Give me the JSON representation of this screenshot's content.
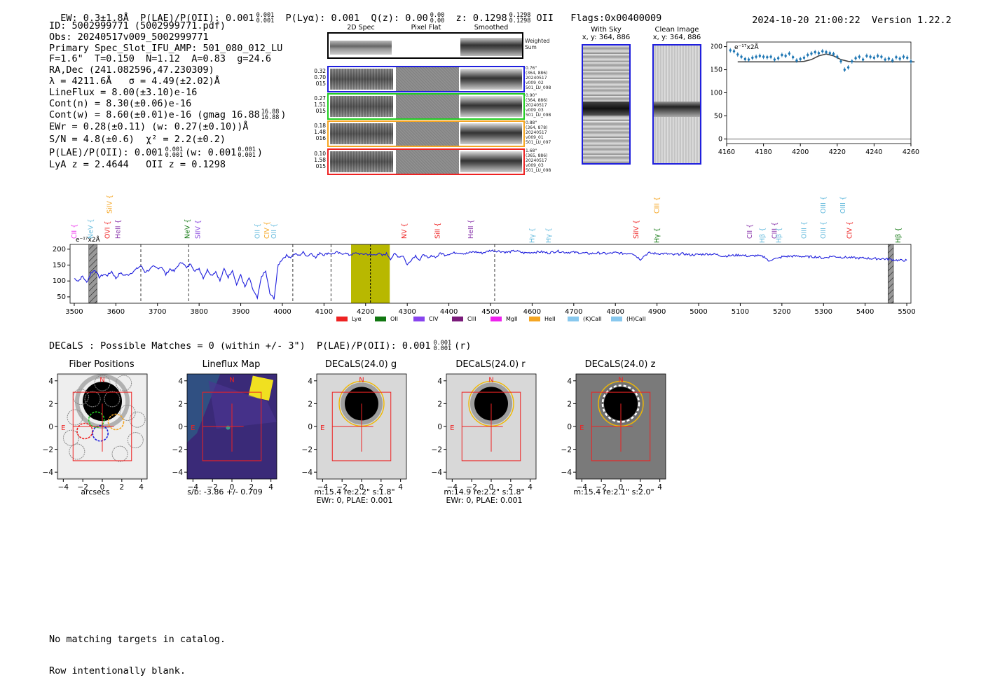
{
  "header": {
    "ew": "EW: 0.3±1.8Å",
    "plae_label": "P(LAE)/P(OII): 0.001",
    "plae_hi": "0.001",
    "plae_lo": "0.001",
    "plya": "P(Lyα): 0.001",
    "qz_label": "Q(z): 0.00",
    "qz_hi": "0.00",
    "qz_lo": "0.00",
    "z_label": "z: 0.1298",
    "z_hi": "0.1298",
    "z_lo": "0.1298",
    "z_line": "OII",
    "flags": "Flags:0x00400009",
    "datetime": "2024-10-20 21:00:22",
    "version": "Version 1.22.2"
  },
  "info": {
    "id": "ID: 5002999771 (5002999771.pdf)",
    "obs": "Obs: 20240517v009_5002999771",
    "primary": "Primary Spec_Slot_IFU_AMP: 501_080_012_LU",
    "fiber": "F=1.6\"  T=0.150  N=1.12  A=0.83  g=24.6",
    "radec": "RA,Dec (241.082596,47.230309)",
    "lambda": "λ = 4211.6Å   σ = 4.49(±2.02)Å",
    "lineflux": "LineFlux = 8.00(±3.10)e-16",
    "contn": "Cont(n) = 8.30(±0.06)e-16",
    "contw": "Cont(w) = 8.60(±0.01)e-16 (gmag 16.88",
    "gmag_hi": "16.88",
    "gmag_lo": "16.88",
    "ewr": "EWr = 0.28(±0.11) (w: 0.27(±0.10))Å",
    "sn": "S/N = 4.8(±0.6)  χ² = 2.2(±0.2)",
    "plae": "P(LAE)/P(OII): 0.001",
    "plae_hi": "0.001",
    "plae_lo": "0.001",
    "plae_w": "(w: 0.001",
    "plae_w_hi": "0.001",
    "plae_w_lo": "0.001",
    "lya_z": "LyA z = 2.4644   OII z = 0.1298"
  },
  "cutouts": {
    "col_titles": [
      "2D Spec",
      "Pixel Flat",
      "Smoothed"
    ],
    "weighted_label": "Weighted\nSum",
    "rows": [
      {
        "color": "#1f1fdd",
        "left": [
          "0.32",
          "0.70",
          "015"
        ],
        "right": [
          "0.76\"",
          "(364, 886)",
          "20240517",
          "v009_02",
          "501_LU_098"
        ]
      },
      {
        "color": "#22cc22",
        "left": [
          "0.27",
          "1.51",
          "015"
        ],
        "right": [
          "0.90\"",
          "(364, 886)",
          "20240517",
          "v009_03",
          "501_LU_098"
        ]
      },
      {
        "color": "#f5a623",
        "left": [
          "0.18",
          "1.48",
          "016"
        ],
        "right": [
          "0.88\"",
          "(364, 878)",
          "20240517",
          "v009_01",
          "501_LU_097"
        ]
      },
      {
        "color": "#ee2222",
        "left": [
          "0.10",
          "1.58",
          "015"
        ],
        "right": [
          "1.68\"",
          "(365, 886)",
          "20240517",
          "v009_03",
          "501_LU_098"
        ]
      }
    ],
    "with_sky_title": "With Sky",
    "with_sky_xy": "x, y: 364, 886",
    "clean_title": "Clean Image",
    "clean_xy": "x, y: 364, 886"
  },
  "colors": {
    "spectrum": "#1f1fdd",
    "zoom_points": "#1f77b4",
    "highlight": "#b8b800"
  },
  "zoom_chart": {
    "type": "scatter",
    "unit_label": "e⁻¹⁷x2Å",
    "xlim": [
      4160,
      4260
    ],
    "ylim": [
      -10,
      210
    ],
    "xticks": [
      4160,
      4180,
      4200,
      4220,
      4240,
      4260
    ],
    "yticks": [
      0,
      50,
      100,
      150,
      200
    ],
    "points_x": [
      4162,
      4164,
      4166,
      4168,
      4170,
      4172,
      4174,
      4176,
      4178,
      4180,
      4182,
      4184,
      4186,
      4188,
      4190,
      4192,
      4194,
      4196,
      4198,
      4200,
      4202,
      4204,
      4206,
      4208,
      4210,
      4212,
      4214,
      4216,
      4218,
      4220,
      4222,
      4224,
      4226,
      4228,
      4230,
      4232,
      4234,
      4236,
      4238,
      4240,
      4242,
      4244,
      4246,
      4248,
      4250,
      4252,
      4254,
      4256,
      4258,
      4260
    ],
    "points_y": [
      192,
      190,
      183,
      178,
      173,
      172,
      176,
      178,
      180,
      178,
      177,
      178,
      172,
      175,
      182,
      180,
      185,
      177,
      170,
      173,
      176,
      182,
      185,
      188,
      186,
      190,
      188,
      186,
      184,
      178,
      168,
      150,
      155,
      168,
      175,
      178,
      172,
      180,
      178,
      176,
      180,
      178,
      172,
      174,
      170,
      177,
      174,
      178,
      176,
      168
    ],
    "fit_x": [
      4166,
      4190,
      4195,
      4198,
      4202,
      4206,
      4210,
      4214,
      4218,
      4222,
      4226,
      4230,
      4262
    ],
    "fit_y": [
      167,
      167,
      167,
      167,
      168,
      172,
      180,
      184,
      180,
      172,
      168,
      167,
      167
    ]
  },
  "spectrum": {
    "type": "line",
    "unit_label": "e⁻¹⁷x2Å",
    "xlim": [
      3490,
      5510
    ],
    "ylim": [
      30,
      215
    ],
    "xticks": [
      3500,
      3600,
      3700,
      3800,
      3900,
      4000,
      4100,
      4200,
      4300,
      4400,
      4500,
      4600,
      4700,
      4800,
      4900,
      5000,
      5100,
      5200,
      5300,
      5400,
      5500
    ],
    "yticks": [
      50,
      100,
      150,
      200
    ],
    "highlight_range": [
      4165,
      4258
    ],
    "center_line": 4211.6,
    "dashed_lines": [
      3660,
      3775,
      4025,
      4117,
      4510
    ],
    "hatched_ranges": [
      [
        3535,
        3555
      ],
      [
        5455,
        5468
      ]
    ],
    "line_labels": [
      {
        "name": "CII",
        "x": 3505,
        "color": "#ee33ee",
        "tier": 1
      },
      {
        "name": "NeV",
        "x": 3545,
        "color": "#66bbdd",
        "tier": 1
      },
      {
        "name": "OVI",
        "x": 3585,
        "color": "#ee2222",
        "tier": 1
      },
      {
        "name": "SiIV",
        "x": 3590,
        "color": "#f5a623",
        "tier": 3
      },
      {
        "name": "HeII",
        "x": 3610,
        "color": "#8833aa",
        "tier": 1
      },
      {
        "name": "NeV",
        "x": 3777,
        "color": "#117711",
        "tier": 1
      },
      {
        "name": "SiIV",
        "x": 3802,
        "color": "#8844dd",
        "tier": 1
      },
      {
        "name": "OII",
        "x": 3945,
        "color": "#66bbdd",
        "tier": 1
      },
      {
        "name": "CIV",
        "x": 3968,
        "color": "#f5a623",
        "tier": 1
      },
      {
        "name": "OII",
        "x": 3985,
        "color": "#66bbdd",
        "tier": 1
      },
      {
        "name": "NV",
        "x": 4298,
        "color": "#ee2222",
        "tier": 1
      },
      {
        "name": "SiII",
        "x": 4378,
        "color": "#ee2222",
        "tier": 1
      },
      {
        "name": "HeII",
        "x": 4458,
        "color": "#8833aa",
        "tier": 1
      },
      {
        "name": "Hγ",
        "x": 4605,
        "color": "#66bbdd",
        "tier": 0
      },
      {
        "name": "Hγ",
        "x": 4645,
        "color": "#66bbdd",
        "tier": 0
      },
      {
        "name": "SiIV",
        "x": 4855,
        "color": "#ee2222",
        "tier": 1
      },
      {
        "name": "CIII",
        "x": 4905,
        "color": "#f5a623",
        "tier": 3
      },
      {
        "name": "Hγ",
        "x": 4905,
        "color": "#117711",
        "tier": 0
      },
      {
        "name": "CII",
        "x": 5128,
        "color": "#8833aa",
        "tier": 1
      },
      {
        "name": "Hβ",
        "x": 5158,
        "color": "#66bbdd",
        "tier": 0
      },
      {
        "name": "CIII",
        "x": 5188,
        "color": "#8833aa",
        "tier": 1
      },
      {
        "name": "Hβ",
        "x": 5198,
        "color": "#66bbdd",
        "tier": 0
      },
      {
        "name": "OIII",
        "x": 5258,
        "color": "#66bbdd",
        "tier": 1
      },
      {
        "name": "OIII",
        "x": 5305,
        "color": "#66bbdd",
        "tier": 1
      },
      {
        "name": "OIII",
        "x": 5305,
        "color": "#66bbdd",
        "tier": 3
      },
      {
        "name": "OIII",
        "x": 5352,
        "color": "#66bbdd",
        "tier": 3
      },
      {
        "name": "CIV",
        "x": 5368,
        "color": "#ee2222",
        "tier": 1
      },
      {
        "name": "Hβ",
        "x": 5485,
        "color": "#117711",
        "tier": 0
      }
    ],
    "legend": [
      {
        "label": "Lyα",
        "color": "#ee2222"
      },
      {
        "label": "OII",
        "color": "#117711"
      },
      {
        "label": "CIV",
        "color": "#8844ee"
      },
      {
        "label": "CIII",
        "color": "#7a1b7a"
      },
      {
        "label": "MgII",
        "color": "#ee22ee"
      },
      {
        "label": "HeII",
        "color": "#f5a623"
      },
      {
        "label": "(K)CaII",
        "color": "#88c8ee"
      },
      {
        "label": "(H)CaII",
        "color": "#88c8ee"
      }
    ],
    "anchor_x": [
      3500,
      3510,
      3520,
      3530,
      3540,
      3550,
      3560,
      3570,
      3580,
      3590,
      3600,
      3610,
      3620,
      3630,
      3640,
      3650,
      3660,
      3670,
      3680,
      3690,
      3700,
      3710,
      3720,
      3730,
      3740,
      3750,
      3760,
      3770,
      3780,
      3790,
      3800,
      3810,
      3820,
      3830,
      3840,
      3850,
      3860,
      3870,
      3880,
      3890,
      3900,
      3910,
      3920,
      3930,
      3940,
      3950,
      3960,
      3970,
      3980,
      3990,
      4000,
      4010,
      4020,
      4030,
      4040,
      4050,
      4060,
      4070,
      4080,
      4090,
      4100,
      4110,
      4120,
      4130,
      4140,
      4150,
      4160,
      4170,
      4180,
      4190,
      4200,
      4210,
      4220,
      4230,
      4240,
      4250,
      4260,
      4270,
      4280,
      4290,
      4300,
      4310,
      4320,
      4330,
      4340,
      4350,
      4360,
      4370,
      4380,
      4390,
      4400,
      4420,
      4440,
      4460,
      4480,
      4500,
      4520,
      4540,
      4560,
      4580,
      4600,
      4620,
      4640,
      4660,
      4680,
      4700,
      4720,
      4740,
      4760,
      4780,
      4800,
      4820,
      4840,
      4860,
      4870,
      4880,
      4900,
      4920,
      4940,
      4960,
      4980,
      5000,
      5020,
      5040,
      5060,
      5080,
      5100,
      5120,
      5140,
      5160,
      5170,
      5180,
      5190,
      5200,
      5220,
      5240,
      5260,
      5280,
      5300,
      5320,
      5340,
      5360,
      5380,
      5400,
      5420,
      5440,
      5460,
      5480,
      5500
    ],
    "anchor_y": [
      108,
      100,
      115,
      95,
      125,
      135,
      112,
      120,
      118,
      130,
      108,
      125,
      118,
      120,
      128,
      138,
      148,
      128,
      135,
      145,
      140,
      145,
      120,
      138,
      130,
      150,
      160,
      140,
      155,
      130,
      140,
      110,
      135,
      118,
      130,
      100,
      138,
      112,
      135,
      88,
      120,
      80,
      110,
      70,
      45,
      115,
      130,
      60,
      45,
      150,
      170,
      180,
      175,
      185,
      180,
      190,
      178,
      188,
      172,
      190,
      182,
      188,
      185,
      190,
      185,
      188,
      182,
      185,
      188,
      183,
      186,
      182,
      182,
      187,
      180,
      186,
      170,
      185,
      176,
      180,
      150,
      168,
      180,
      165,
      185,
      170,
      180,
      175,
      188,
      182,
      185,
      190,
      186,
      192,
      188,
      196,
      194,
      190,
      195,
      188,
      190,
      192,
      188,
      194,
      190,
      190,
      188,
      186,
      188,
      186,
      189,
      186,
      188,
      168,
      180,
      188,
      186,
      186,
      182,
      186,
      182,
      183,
      185,
      184,
      178,
      180,
      182,
      178,
      180,
      175,
      160,
      172,
      170,
      176,
      178,
      178,
      176,
      176,
      172,
      178,
      175,
      174,
      172,
      172,
      170,
      170,
      168,
      165,
      165
    ]
  },
  "decals": {
    "summary_label": "DECaLS : Possible Matches = 0 (within +/- 3\")  P(LAE)/P(OII): 0.001",
    "summary_hi": "0.001",
    "summary_lo": "0.001",
    "summary_band": "(r)"
  },
  "stamps": [
    {
      "title": "Fiber Positions",
      "caption": [
        "arcsecs"
      ],
      "kind": "fiber"
    },
    {
      "title": "Lineflux Map",
      "caption": [
        "s/b: -3.86 +/- 0.709"
      ],
      "kind": "lineflux"
    },
    {
      "title": "DECaLS(24.0) g",
      "caption": [
        "m:15.4  re:2.2\"  s:1.8\"",
        "EWr: 0, PLAE: 0.001"
      ],
      "kind": "g"
    },
    {
      "title": "DECaLS(24.0) r",
      "caption": [
        "m:14.9  re:2.2\"  s:1.8\"",
        "EWr: 0, PLAE: 0.001"
      ],
      "kind": "r"
    },
    {
      "title": "DECaLS(24.0) z",
      "caption": [
        "m:15.4  re:2.1\"  s:2.0\""
      ],
      "kind": "z"
    }
  ],
  "stamp_axes": {
    "xticks": [
      "−4",
      "−2",
      "0",
      "2",
      "4"
    ],
    "yticks": [
      "4",
      "2",
      "0",
      "−2",
      "−4"
    ],
    "north": "N",
    "east": "E"
  },
  "footer": {
    "line1": "No matching targets in catalog.",
    "line2": "Row intentionally blank."
  }
}
